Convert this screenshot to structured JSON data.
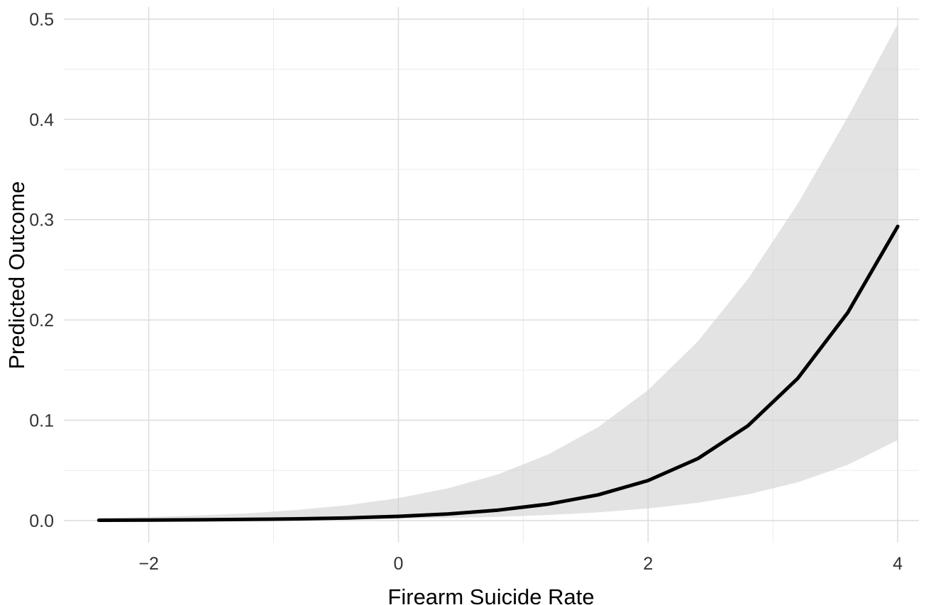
{
  "chart": {
    "xlabel": "Firearm Suicide Rate",
    "ylabel": "Predicted Outcome"
  },
  "chart_data": {
    "type": "line",
    "title": "",
    "xlabel": "Firearm Suicide Rate",
    "ylabel": "Predicted Outcome",
    "legend_position": "none",
    "grid": true,
    "x_range": [
      -2.68,
      4.17
    ],
    "y_range": [
      -0.022,
      0.512
    ],
    "x_ticks": [
      -2,
      0,
      2,
      4
    ],
    "x_tick_labels": [
      "−2",
      "0",
      "2",
      "4"
    ],
    "x_minor_gridlines": [
      -1,
      1,
      3
    ],
    "y_ticks": [
      0.0,
      0.1,
      0.2,
      0.3,
      0.4,
      0.5
    ],
    "y_tick_labels": [
      "0.0",
      "0.1",
      "0.2",
      "0.3",
      "0.4",
      "0.5"
    ],
    "y_minor_gridlines": [
      0.05,
      0.15,
      0.25,
      0.35,
      0.45
    ],
    "x": [
      -2.4,
      -2.0,
      -1.6,
      -1.2,
      -0.8,
      -0.4,
      0.0,
      0.4,
      0.8,
      1.2,
      1.6,
      2.0,
      2.4,
      2.8,
      3.2,
      3.6,
      4.0
    ],
    "series": [
      {
        "name": "fit",
        "values": [
          0.0003,
          0.0004,
          0.0007,
          0.0011,
          0.0017,
          0.0026,
          0.0042,
          0.0066,
          0.0104,
          0.0163,
          0.0256,
          0.0399,
          0.0618,
          0.0945,
          0.1419,
          0.2074,
          0.2933
        ]
      },
      {
        "name": "ci_lower",
        "values": [
          0.0002,
          0.0002,
          0.0004,
          0.0005,
          0.0008,
          0.0011,
          0.0017,
          0.0025,
          0.0037,
          0.0055,
          0.0081,
          0.012,
          0.0177,
          0.026,
          0.0381,
          0.0555,
          0.0802
        ]
      },
      {
        "name": "ci_upper",
        "values": [
          0.0024,
          0.0035,
          0.0051,
          0.0073,
          0.0107,
          0.0154,
          0.0223,
          0.0322,
          0.0462,
          0.0659,
          0.0931,
          0.1301,
          0.1788,
          0.2408,
          0.3161,
          0.4023,
          0.495
        ]
      }
    ],
    "colors": {
      "line": "#000000",
      "band_fill": "#d0d0d0",
      "band_opacity": 0.6,
      "grid_major": "#dedede",
      "grid_minor": "#ececec",
      "tick_text": "#333333",
      "axis_text": "#000000",
      "background": "#ffffff"
    }
  }
}
